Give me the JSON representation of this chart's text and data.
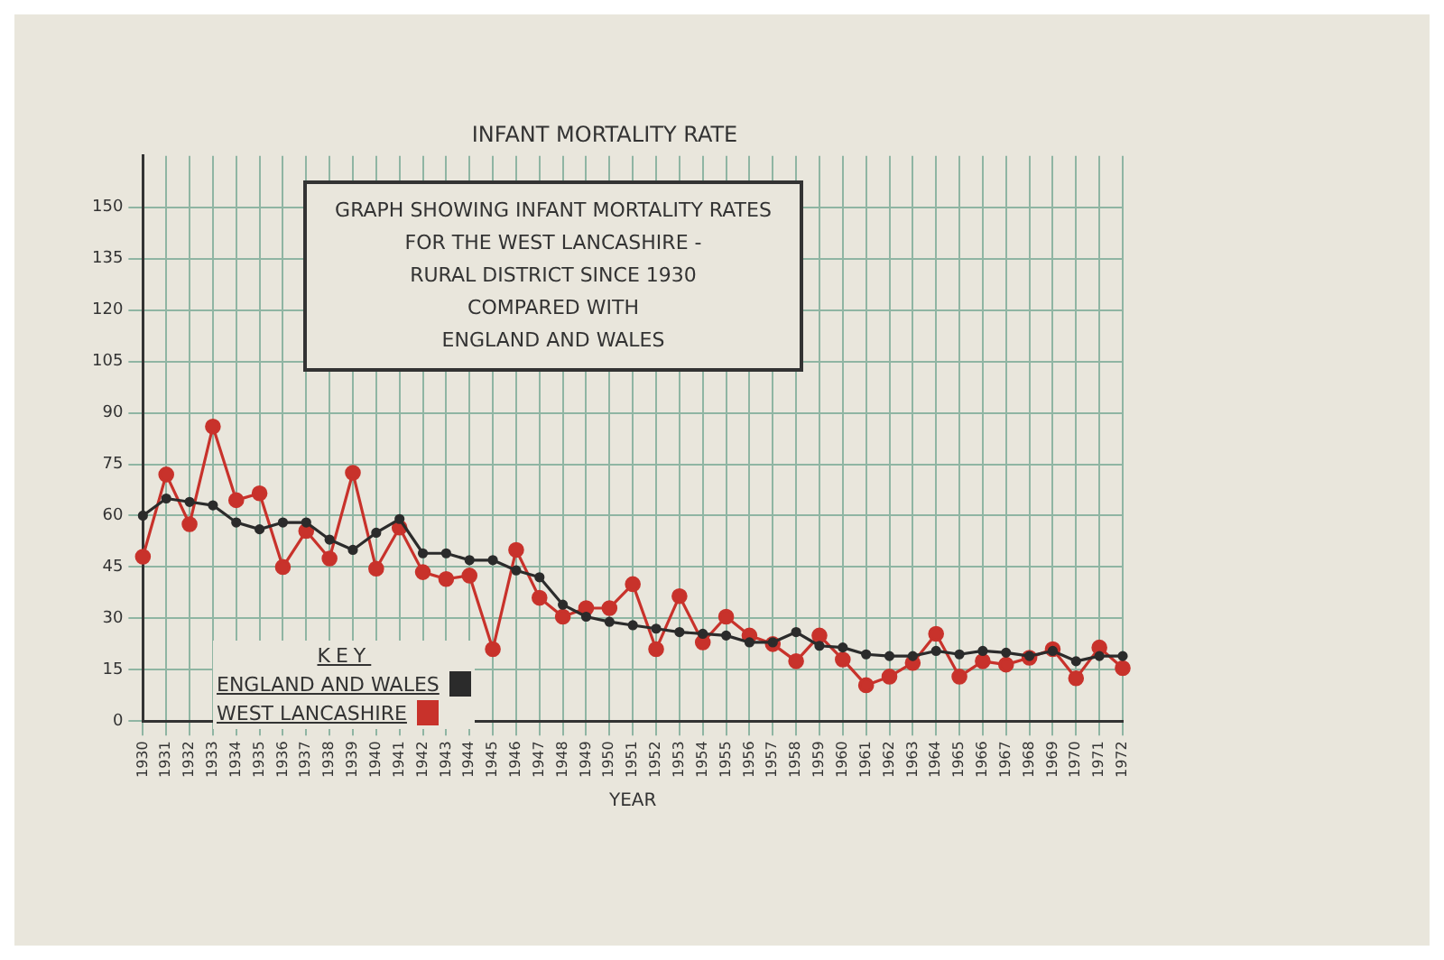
{
  "chart_data": {
    "type": "line",
    "title": "INFANT MORTALITY RATE",
    "subtitle": "GRAPH SHOWING INFANT MORTALITY RATES\nFOR THE WEST LANCASHIRE -\nRURAL DISTRICT SINCE 1930\nCOMPARED WITH\nENGLAND AND WALES",
    "xlabel": "YEAR",
    "legend_title": "KEY",
    "legend": "bottom left",
    "grid": true,
    "marker": "circle",
    "line_style": "solid",
    "categories": [
      "1930",
      "1931",
      "1932",
      "1933",
      "1934",
      "1935",
      "1936",
      "1937",
      "1938",
      "1939",
      "1940",
      "1941",
      "1942",
      "1943",
      "1944",
      "1945",
      "1946",
      "1947",
      "1948",
      "1949",
      "1950",
      "1951",
      "1952",
      "1953",
      "1954",
      "1955",
      "1956",
      "1957",
      "1958",
      "1959",
      "1960",
      "1961",
      "1962",
      "1963",
      "1964",
      "1965",
      "1966",
      "1967",
      "1968",
      "1969",
      "1970",
      "1971",
      "1972"
    ],
    "ylim": [
      0,
      165
    ],
    "yticks": [
      0,
      15,
      30,
      45,
      60,
      75,
      90,
      105,
      120,
      135,
      150
    ],
    "series": [
      {
        "name": "ENGLAND AND WALES",
        "color": "#2b2b2b",
        "values": [
          60,
          65,
          64,
          63,
          58,
          56,
          58,
          58,
          53,
          50,
          55,
          59,
          49,
          49,
          47,
          47,
          44,
          42,
          34,
          30.5,
          29,
          28,
          27,
          26,
          25.5,
          25,
          23,
          23,
          26,
          22,
          21.5,
          19.5,
          19,
          19,
          20.5,
          19.5,
          20.5,
          20,
          19,
          20.5,
          17.5,
          19,
          19
        ]
      },
      {
        "name": "WEST LANCASHIRE",
        "color": "#c8322b",
        "values": [
          48,
          72,
          57.5,
          86,
          64.5,
          66.5,
          45,
          55.5,
          47.5,
          72.5,
          44.5,
          56.5,
          43.5,
          41.5,
          42.5,
          21,
          50,
          36,
          30.5,
          33,
          33,
          40,
          21,
          36.5,
          23,
          30.5,
          25,
          22.5,
          17.5,
          25,
          18,
          10.5,
          13,
          17,
          25.5,
          13,
          17.5,
          16.5,
          18.5,
          21,
          12.5,
          21.5,
          15.5
        ]
      }
    ]
  }
}
